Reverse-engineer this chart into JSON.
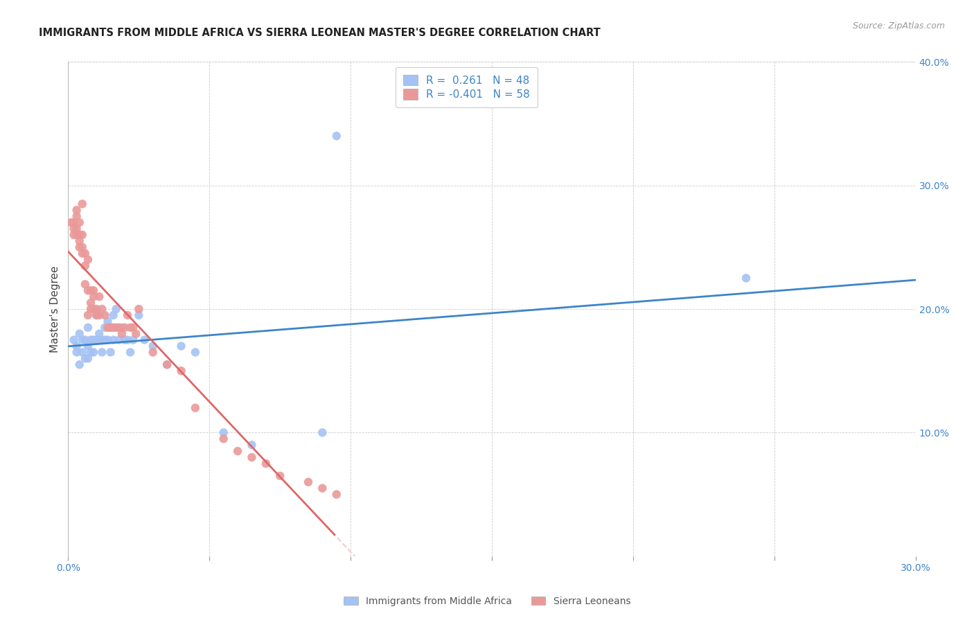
{
  "title": "IMMIGRANTS FROM MIDDLE AFRICA VS SIERRA LEONEAN MASTER'S DEGREE CORRELATION CHART",
  "source": "Source: ZipAtlas.com",
  "ylabel": "Master's Degree",
  "xlim": [
    0.0,
    0.3
  ],
  "ylim": [
    0.0,
    0.4
  ],
  "blue_R": 0.261,
  "blue_N": 48,
  "pink_R": -0.401,
  "pink_N": 58,
  "blue_color": "#a4c2f4",
  "pink_color": "#ea9999",
  "blue_line_color": "#3d85c8",
  "pink_line_color": "#e06666",
  "pink_line_dashed_color": "#f4cccc",
  "legend_blue_label": "Immigrants from Middle Africa",
  "legend_pink_label": "Sierra Leoneans",
  "blue_x": [
    0.002,
    0.003,
    0.003,
    0.004,
    0.004,
    0.005,
    0.005,
    0.006,
    0.006,
    0.007,
    0.007,
    0.007,
    0.008,
    0.008,
    0.009,
    0.009,
    0.01,
    0.01,
    0.011,
    0.011,
    0.012,
    0.012,
    0.013,
    0.013,
    0.014,
    0.014,
    0.015,
    0.015,
    0.016,
    0.016,
    0.017,
    0.018,
    0.019,
    0.02,
    0.021,
    0.022,
    0.023,
    0.025,
    0.027,
    0.03,
    0.035,
    0.04,
    0.045,
    0.055,
    0.065,
    0.09,
    0.095,
    0.24
  ],
  "blue_y": [
    0.175,
    0.17,
    0.165,
    0.155,
    0.18,
    0.165,
    0.175,
    0.16,
    0.175,
    0.17,
    0.16,
    0.185,
    0.165,
    0.175,
    0.175,
    0.165,
    0.175,
    0.195,
    0.175,
    0.18,
    0.175,
    0.165,
    0.185,
    0.175,
    0.175,
    0.19,
    0.165,
    0.185,
    0.175,
    0.195,
    0.2,
    0.175,
    0.185,
    0.175,
    0.175,
    0.165,
    0.175,
    0.195,
    0.175,
    0.17,
    0.155,
    0.17,
    0.165,
    0.1,
    0.09,
    0.1,
    0.34,
    0.225
  ],
  "pink_x": [
    0.001,
    0.002,
    0.002,
    0.002,
    0.003,
    0.003,
    0.003,
    0.003,
    0.004,
    0.004,
    0.004,
    0.004,
    0.005,
    0.005,
    0.005,
    0.005,
    0.006,
    0.006,
    0.006,
    0.007,
    0.007,
    0.007,
    0.008,
    0.008,
    0.008,
    0.009,
    0.009,
    0.009,
    0.01,
    0.01,
    0.011,
    0.011,
    0.012,
    0.013,
    0.014,
    0.015,
    0.016,
    0.017,
    0.018,
    0.019,
    0.02,
    0.021,
    0.022,
    0.023,
    0.024,
    0.025,
    0.03,
    0.035,
    0.04,
    0.045,
    0.055,
    0.06,
    0.065,
    0.07,
    0.075,
    0.085,
    0.09,
    0.095
  ],
  "pink_y": [
    0.27,
    0.27,
    0.265,
    0.26,
    0.28,
    0.275,
    0.265,
    0.26,
    0.27,
    0.26,
    0.255,
    0.25,
    0.26,
    0.25,
    0.245,
    0.285,
    0.245,
    0.235,
    0.22,
    0.24,
    0.215,
    0.195,
    0.215,
    0.2,
    0.205,
    0.215,
    0.2,
    0.21,
    0.2,
    0.195,
    0.21,
    0.195,
    0.2,
    0.195,
    0.185,
    0.185,
    0.185,
    0.185,
    0.185,
    0.18,
    0.185,
    0.195,
    0.185,
    0.185,
    0.18,
    0.2,
    0.165,
    0.155,
    0.15,
    0.12,
    0.095,
    0.085,
    0.08,
    0.075,
    0.065,
    0.06,
    0.055,
    0.05
  ]
}
